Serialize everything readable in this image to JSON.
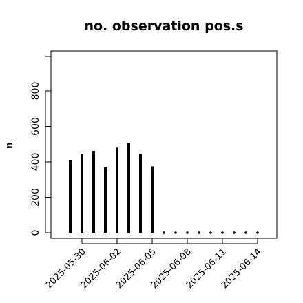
{
  "chart_data": {
    "type": "bar",
    "title": "no. observation pos.s",
    "xlabel": "",
    "ylabel": "n",
    "ylim": [
      0,
      1000
    ],
    "y_ticks": [
      0,
      200,
      400,
      600,
      800
    ],
    "x_ticks": [
      "2025-05-30",
      "2025-06-02",
      "2025-06-05",
      "2025-06-08",
      "2025-06-11",
      "2025-06-14"
    ],
    "highlight_tick": "2025-06-05",
    "highlight_color": "#1a8a1a",
    "categories": [
      "2025-05-29",
      "2025-05-30",
      "2025-05-31",
      "2025-06-01",
      "2025-06-02",
      "2025-06-03",
      "2025-06-04",
      "2025-06-05",
      "2025-06-06",
      "2025-06-07",
      "2025-06-08",
      "2025-06-09",
      "2025-06-10",
      "2025-06-11",
      "2025-06-12",
      "2025-06-13",
      "2025-06-14"
    ],
    "values": [
      410,
      445,
      460,
      370,
      480,
      505,
      445,
      375,
      0,
      0,
      0,
      0,
      0,
      0,
      0,
      0,
      0
    ],
    "bar_color": "#000000"
  }
}
